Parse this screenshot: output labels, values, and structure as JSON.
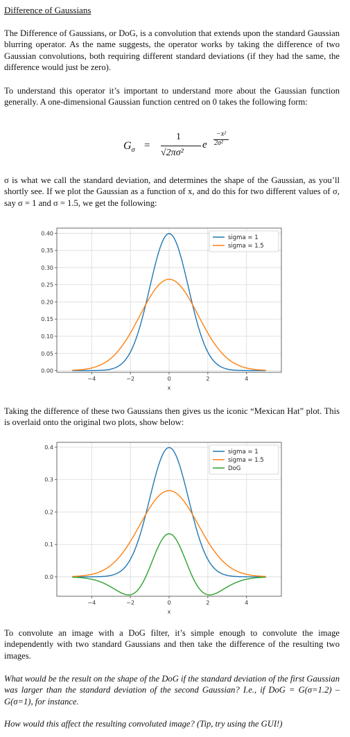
{
  "title": "Difference of Gaussians",
  "paragraphs": {
    "p1": "The Difference of Gaussians, or DoG, is a convolution that extends upon the standard Gaussian blurring operator. As the name suggests, the operator works by taking the difference of two Gaussian convolutions, both requiring different standard deviations (if they had the same, the difference would just be zero).",
    "p2": "To understand this operator it’s important to understand more about the Gaussian function generally. A one-dimensional Gaussian function centred on 0 takes the following form:",
    "p3": "σ is what we call the standard deviation, and determines the shape of the Gaussian, as you’ll shortly see. If we plot the Gaussian as a function of x, and do this for two different values of σ, say σ = 1 and σ = 1.5, we get the following:",
    "p4": "Taking the difference of these two Gaussians then gives us the iconic “Mexican Hat” plot. This is overlaid onto the original two plots, show below:",
    "p5": "To convolute an image with a DoG filter, it’s simple enough to convolute the image independently with two standard Gaussians and then take the difference of the resulting two images.",
    "p6": "What would be the result on the shape of the DoG if the standard deviation of the first Gaussian was larger than the standard deviation of the second Gaussian? I.e., if DoG = G(σ=1.2) – G(σ=1), for instance.",
    "p7": "How would this affect the resulting convoluted image? (Tip, try using the GUI!)"
  },
  "formula": {
    "lhs": "G",
    "lhs_sub": "σ",
    "equals": "=",
    "numerator": "1",
    "denominator": "√2πσ²",
    "base": "e",
    "exp_numerator": "−x²",
    "exp_denominator": "2σ²"
  },
  "colors": {
    "series1": "#1f77b4",
    "series2": "#ff7f0e",
    "series3": "#2ca02c",
    "grid": "#d9d9d9",
    "axis": "#444444"
  },
  "chart_data": [
    {
      "type": "line",
      "title": "",
      "xlabel": "x",
      "ylabel": "",
      "xlim": [
        -5.8,
        5.8
      ],
      "ylim": [
        -0.005,
        0.415
      ],
      "xticks": [
        "−4",
        "−2",
        "0",
        "2",
        "4"
      ],
      "xtick_values": [
        -4,
        -2,
        0,
        2,
        4
      ],
      "yticks": [
        "0.00",
        "0.05",
        "0.10",
        "0.15",
        "0.20",
        "0.25",
        "0.30",
        "0.35",
        "0.40"
      ],
      "ytick_values": [
        0,
        0.05,
        0.1,
        0.15,
        0.2,
        0.25,
        0.3,
        0.35,
        0.4
      ],
      "grid": true,
      "legend": "top-right",
      "x_range": [
        -5,
        5
      ],
      "series": [
        {
          "name": "sigma = 1",
          "sigma": 1,
          "color": "#1f77b4"
        },
        {
          "name": "sigma = 1.5",
          "sigma": 1.5,
          "color": "#ff7f0e"
        }
      ]
    },
    {
      "type": "line",
      "title": "",
      "xlabel": "x",
      "ylabel": "",
      "xlim": [
        -5.8,
        5.8
      ],
      "ylim": [
        -0.06,
        0.415
      ],
      "xticks": [
        "−4",
        "−2",
        "0",
        "2",
        "4"
      ],
      "xtick_values": [
        -4,
        -2,
        0,
        2,
        4
      ],
      "yticks": [
        "0.0",
        "0.1",
        "0.2",
        "0.3",
        "0.4"
      ],
      "ytick_values": [
        0,
        0.1,
        0.2,
        0.3,
        0.4
      ],
      "grid": true,
      "legend": "top-right",
      "x_range": [
        -5,
        5
      ],
      "series": [
        {
          "name": "sigma = 1",
          "sigma": 1,
          "color": "#1f77b4"
        },
        {
          "name": "sigma = 1.5",
          "sigma": 1.5,
          "color": "#ff7f0e"
        },
        {
          "name": "DoG",
          "dog": [
            1,
            1.5
          ],
          "color": "#2ca02c"
        }
      ]
    }
  ]
}
